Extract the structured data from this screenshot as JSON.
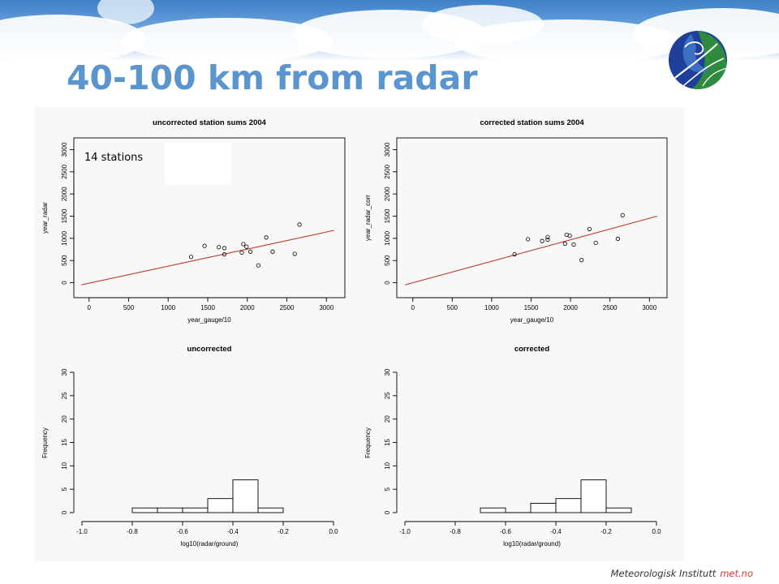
{
  "slide": {
    "title": "40-100 km from radar",
    "footer_org": "Meteorologisk Institutt",
    "footer_brand": "met.no",
    "colors": {
      "title": "#5b95cf",
      "brand": "#d8392b",
      "regression_line": "#c0392b"
    }
  },
  "chart_data": [
    {
      "type": "scatter",
      "title": "uncorrected station sums 2004",
      "xlabel": "year_gauge/10",
      "ylabel": "year_radar",
      "xlim": [
        -100,
        3100
      ],
      "ylim": [
        -100,
        3100
      ],
      "xticks": [
        0,
        500,
        1000,
        1500,
        2000,
        2500,
        3000
      ],
      "yticks": [
        0,
        500,
        1000,
        1500,
        2000,
        2500,
        3000
      ],
      "annotation": "14 stations",
      "points": [
        {
          "x": 1290,
          "y": 580
        },
        {
          "x": 1460,
          "y": 830
        },
        {
          "x": 1640,
          "y": 800
        },
        {
          "x": 1710,
          "y": 640
        },
        {
          "x": 1710,
          "y": 780
        },
        {
          "x": 1930,
          "y": 680
        },
        {
          "x": 1950,
          "y": 870
        },
        {
          "x": 1990,
          "y": 810
        },
        {
          "x": 2040,
          "y": 700
        },
        {
          "x": 2140,
          "y": 390
        },
        {
          "x": 2240,
          "y": 1020
        },
        {
          "x": 2320,
          "y": 700
        },
        {
          "x": 2600,
          "y": 650
        },
        {
          "x": 2660,
          "y": 1310
        }
      ],
      "fit_line": {
        "x": [
          -100,
          3100
        ],
        "y": [
          -50,
          1180
        ]
      }
    },
    {
      "type": "scatter",
      "title": "corrected station sums 2004",
      "xlabel": "year_gauge/10",
      "ylabel": "year_radar_corr",
      "xlim": [
        -100,
        3100
      ],
      "ylim": [
        -100,
        3100
      ],
      "xticks": [
        0,
        500,
        1000,
        1500,
        2000,
        2500,
        3000
      ],
      "yticks": [
        0,
        500,
        1000,
        1500,
        2000,
        2500,
        3000
      ],
      "points": [
        {
          "x": 1290,
          "y": 640
        },
        {
          "x": 1460,
          "y": 980
        },
        {
          "x": 1640,
          "y": 940
        },
        {
          "x": 1710,
          "y": 970
        },
        {
          "x": 1710,
          "y": 1030
        },
        {
          "x": 1930,
          "y": 880
        },
        {
          "x": 1950,
          "y": 1080
        },
        {
          "x": 1990,
          "y": 1060
        },
        {
          "x": 2040,
          "y": 860
        },
        {
          "x": 2140,
          "y": 510
        },
        {
          "x": 2240,
          "y": 1210
        },
        {
          "x": 2320,
          "y": 900
        },
        {
          "x": 2600,
          "y": 990
        },
        {
          "x": 2660,
          "y": 1520
        }
      ],
      "fit_line": {
        "x": [
          -100,
          3100
        ],
        "y": [
          -50,
          1500
        ]
      }
    },
    {
      "type": "bar",
      "subtype": "histogram",
      "title": "uncorrected",
      "xlabel": "log10(radar/ground)",
      "ylabel": "Frequency",
      "xlim": [
        -1.0,
        0.0
      ],
      "ylim": [
        0,
        30
      ],
      "xticks": [
        "-1.0",
        "-0.8",
        "-0.6",
        "-0.4",
        "-0.2",
        "0.0"
      ],
      "yticks": [
        0,
        5,
        10,
        15,
        20,
        25,
        30
      ],
      "bins": [
        {
          "from": -0.8,
          "to": -0.7,
          "count": 1
        },
        {
          "from": -0.7,
          "to": -0.6,
          "count": 1
        },
        {
          "from": -0.6,
          "to": -0.5,
          "count": 1
        },
        {
          "from": -0.5,
          "to": -0.4,
          "count": 3
        },
        {
          "from": -0.4,
          "to": -0.3,
          "count": 7
        },
        {
          "from": -0.3,
          "to": -0.2,
          "count": 1
        }
      ]
    },
    {
      "type": "bar",
      "subtype": "histogram",
      "title": "corrected",
      "xlabel": "log10(radar/ground)",
      "ylabel": "Frequency",
      "xlim": [
        -1.0,
        0.0
      ],
      "ylim": [
        0,
        30
      ],
      "xticks": [
        "-1.0",
        "-0.8",
        "-0.6",
        "-0.4",
        "-0.2",
        "0.0"
      ],
      "yticks": [
        0,
        5,
        10,
        15,
        20,
        25,
        30
      ],
      "bins": [
        {
          "from": -0.7,
          "to": -0.6,
          "count": 1
        },
        {
          "from": -0.6,
          "to": -0.5,
          "count": 0
        },
        {
          "from": -0.5,
          "to": -0.4,
          "count": 2
        },
        {
          "from": -0.4,
          "to": -0.3,
          "count": 3
        },
        {
          "from": -0.3,
          "to": -0.2,
          "count": 7
        },
        {
          "from": -0.2,
          "to": -0.1,
          "count": 1
        }
      ]
    }
  ]
}
